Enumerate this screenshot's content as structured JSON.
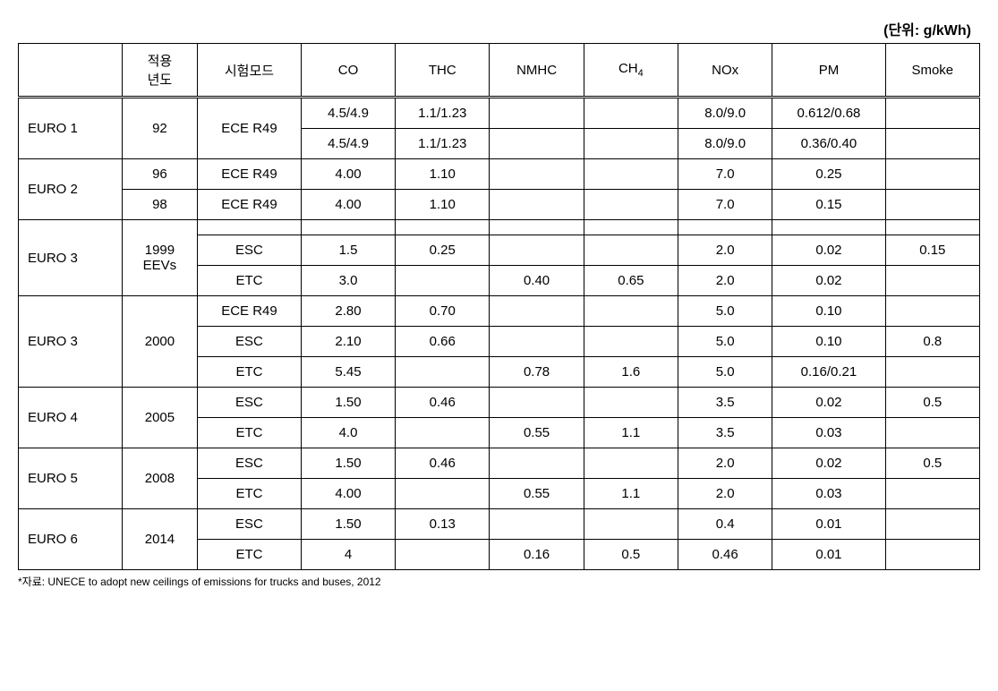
{
  "unit_label": "(단위: g/kWh)",
  "headers": {
    "standard": "",
    "year": "적용\n년도",
    "mode": "시험모드",
    "co": "CO",
    "thc": "THC",
    "nmhc": "NMHC",
    "ch4": "CH₄",
    "nox": "NOx",
    "pm": "PM",
    "smoke": "Smoke"
  },
  "rows": [
    {
      "standard": "EURO 1",
      "year": "92",
      "mode": "ECE R49",
      "co": "4.5/4.9",
      "thc": "1.1/1.23",
      "nmhc": "",
      "ch4": "",
      "nox": "8.0/9.0",
      "pm": "0.612/0.68",
      "smoke": ""
    },
    {
      "standard": "",
      "year": "",
      "mode": "",
      "co": "4.5/4.9",
      "thc": "1.1/1.23",
      "nmhc": "",
      "ch4": "",
      "nox": "8.0/9.0",
      "pm": "0.36/0.40",
      "smoke": ""
    },
    {
      "standard": "EURO 2",
      "year": "96",
      "mode": "ECE R49",
      "co": "4.00",
      "thc": "1.10",
      "nmhc": "",
      "ch4": "",
      "nox": "7.0",
      "pm": "0.25",
      "smoke": ""
    },
    {
      "standard": "",
      "year": "98",
      "mode": "ECE R49",
      "co": "4.00",
      "thc": "1.10",
      "nmhc": "",
      "ch4": "",
      "nox": "7.0",
      "pm": "0.15",
      "smoke": ""
    },
    {
      "standard": "EURO 3",
      "year": "1999\nEEVs",
      "mode": "",
      "co": "",
      "thc": "",
      "nmhc": "",
      "ch4": "",
      "nox": "",
      "pm": "",
      "smoke": ""
    },
    {
      "standard": "",
      "year": "",
      "mode": "ESC",
      "co": "1.5",
      "thc": "0.25",
      "nmhc": "",
      "ch4": "",
      "nox": "2.0",
      "pm": "0.02",
      "smoke": "0.15"
    },
    {
      "standard": "",
      "year": "",
      "mode": "ETC",
      "co": "3.0",
      "thc": "",
      "nmhc": "0.40",
      "ch4": "0.65",
      "nox": "2.0",
      "pm": "0.02",
      "smoke": ""
    },
    {
      "standard": "EURO 3",
      "year": "2000",
      "mode": "ECE R49",
      "co": "2.80",
      "thc": "0.70",
      "nmhc": "",
      "ch4": "",
      "nox": "5.0",
      "pm": "0.10",
      "smoke": ""
    },
    {
      "standard": "",
      "year": "",
      "mode": "ESC",
      "co": "2.10",
      "thc": "0.66",
      "nmhc": "",
      "ch4": "",
      "nox": "5.0",
      "pm": "0.10",
      "smoke": "0.8"
    },
    {
      "standard": "",
      "year": "",
      "mode": "ETC",
      "co": "5.45",
      "thc": "",
      "nmhc": "0.78",
      "ch4": "1.6",
      "nox": "5.0",
      "pm": "0.16/0.21",
      "smoke": ""
    },
    {
      "standard": "EURO 4",
      "year": "2005",
      "mode": "ESC",
      "co": "1.50",
      "thc": "0.46",
      "nmhc": "",
      "ch4": "",
      "nox": "3.5",
      "pm": "0.02",
      "smoke": "0.5"
    },
    {
      "standard": "",
      "year": "",
      "mode": "ETC",
      "co": "4.0",
      "thc": "",
      "nmhc": "0.55",
      "ch4": "1.1",
      "nox": "3.5",
      "pm": "0.03",
      "smoke": ""
    },
    {
      "standard": "EURO 5",
      "year": "2008",
      "mode": "ESC",
      "co": "1.50",
      "thc": "0.46",
      "nmhc": "",
      "ch4": "",
      "nox": "2.0",
      "pm": "0.02",
      "smoke": "0.5"
    },
    {
      "standard": "",
      "year": "",
      "mode": "ETC",
      "co": "4.00",
      "thc": "",
      "nmhc": "0.55",
      "ch4": "1.1",
      "nox": "2.0",
      "pm": "0.03",
      "smoke": ""
    },
    {
      "standard": "EURO 6",
      "year": "2014",
      "mode": "ESC",
      "co": "1.50",
      "thc": "0.13",
      "nmhc": "",
      "ch4": "",
      "nox": "0.4",
      "pm": "0.01",
      "smoke": ""
    },
    {
      "standard": "",
      "year": "",
      "mode": "ETC",
      "co": "4",
      "thc": "",
      "nmhc": "0.16",
      "ch4": "0.5",
      "nox": "0.46",
      "pm": "0.01",
      "smoke": ""
    }
  ],
  "rowspans": {
    "standard": [
      2,
      0,
      2,
      0,
      3,
      0,
      0,
      3,
      0,
      0,
      2,
      0,
      2,
      0,
      2,
      0
    ],
    "year": [
      2,
      0,
      1,
      1,
      3,
      0,
      0,
      3,
      0,
      0,
      2,
      0,
      2,
      0,
      2,
      0
    ],
    "mode": [
      2,
      0,
      1,
      1,
      1,
      1,
      1,
      1,
      1,
      1,
      1,
      1,
      1,
      1,
      1,
      1
    ]
  },
  "footnote": "*자료: UNECE to adopt new ceilings of emissions for trucks and buses, 2012",
  "colors": {
    "border": "#000000",
    "background": "#ffffff",
    "text": "#000000"
  }
}
